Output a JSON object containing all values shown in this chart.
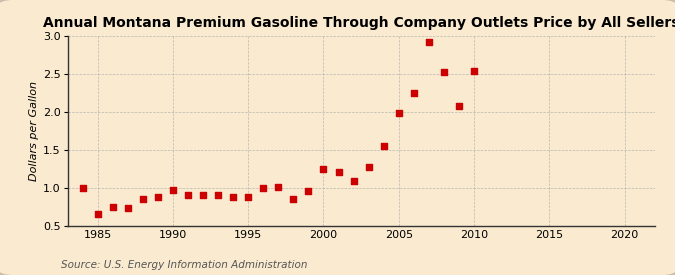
{
  "title": "Annual Montana Premium Gasoline Through Company Outlets Price by All Sellers",
  "ylabel": "Dollars per Gallon",
  "source": "Source: U.S. Energy Information Administration",
  "xlim": [
    1983,
    2022
  ],
  "ylim": [
    0.5,
    3.0
  ],
  "xticks": [
    1985,
    1990,
    1995,
    2000,
    2005,
    2010,
    2015,
    2020
  ],
  "yticks": [
    0.5,
    1.0,
    1.5,
    2.0,
    2.5,
    3.0
  ],
  "years": [
    1984,
    1985,
    1986,
    1987,
    1988,
    1989,
    1990,
    1991,
    1992,
    1993,
    1994,
    1995,
    1996,
    1997,
    1998,
    1999,
    2000,
    2001,
    2002,
    2003,
    2004,
    2005,
    2006,
    2007,
    2008,
    2009,
    2010
  ],
  "values": [
    1.0,
    0.65,
    0.75,
    0.73,
    0.85,
    0.88,
    0.97,
    0.9,
    0.9,
    0.9,
    0.88,
    0.88,
    1.0,
    1.01,
    0.85,
    0.96,
    1.25,
    1.2,
    1.08,
    1.27,
    1.55,
    1.98,
    2.25,
    2.92,
    2.52,
    2.08,
    2.54
  ],
  "marker_color": "#cc0000",
  "background_color": "#faebd0",
  "grid_color": "#aaaaaa",
  "title_fontsize": 10,
  "label_fontsize": 8,
  "tick_fontsize": 8,
  "source_fontsize": 7.5
}
